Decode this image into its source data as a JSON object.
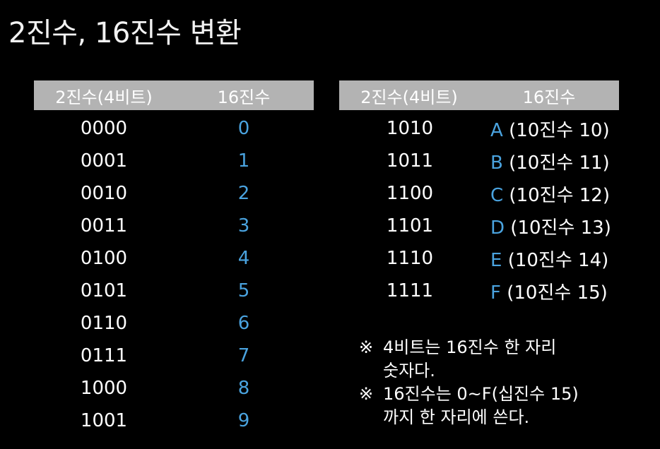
{
  "title": "2진수, 16진수 변환",
  "left_table": {
    "headers": [
      "2진수(4비트)",
      "16진수"
    ],
    "rows": [
      {
        "bin": "0000",
        "hex": "0"
      },
      {
        "bin": "0001",
        "hex": "1"
      },
      {
        "bin": "0010",
        "hex": "2"
      },
      {
        "bin": "0011",
        "hex": "3"
      },
      {
        "bin": "0100",
        "hex": "4"
      },
      {
        "bin": "0101",
        "hex": "5"
      },
      {
        "bin": "0110",
        "hex": "6"
      },
      {
        "bin": "0111",
        "hex": "7"
      },
      {
        "bin": "1000",
        "hex": "8"
      },
      {
        "bin": "1001",
        "hex": "9"
      }
    ]
  },
  "right_table": {
    "headers": [
      "2진수(4비트)",
      "16진수"
    ],
    "rows": [
      {
        "bin": "1010",
        "hex": "A",
        "dec": "(10진수 10)"
      },
      {
        "bin": "1011",
        "hex": "B",
        "dec": "(10진수 11)"
      },
      {
        "bin": "1100",
        "hex": "C",
        "dec": "(10진수 12)"
      },
      {
        "bin": "1101",
        "hex": "D",
        "dec": "(10진수 13)"
      },
      {
        "bin": "1110",
        "hex": "E",
        "dec": "(10진수 14)"
      },
      {
        "bin": "1111",
        "hex": "F",
        "dec": "(10진수 15)"
      }
    ]
  },
  "notes": [
    {
      "mark": "※",
      "text": "4비트는 16진수 한 자리\n숫자다."
    },
    {
      "mark": "※",
      "text": "16진수는 0~F(십진수 15)\n까지 한 자리에 쓴다."
    }
  ],
  "colors": {
    "background": "#000000",
    "header_bg": "#b3b3b3",
    "hex_accent": "#4aa3df",
    "text": "#ffffff"
  }
}
